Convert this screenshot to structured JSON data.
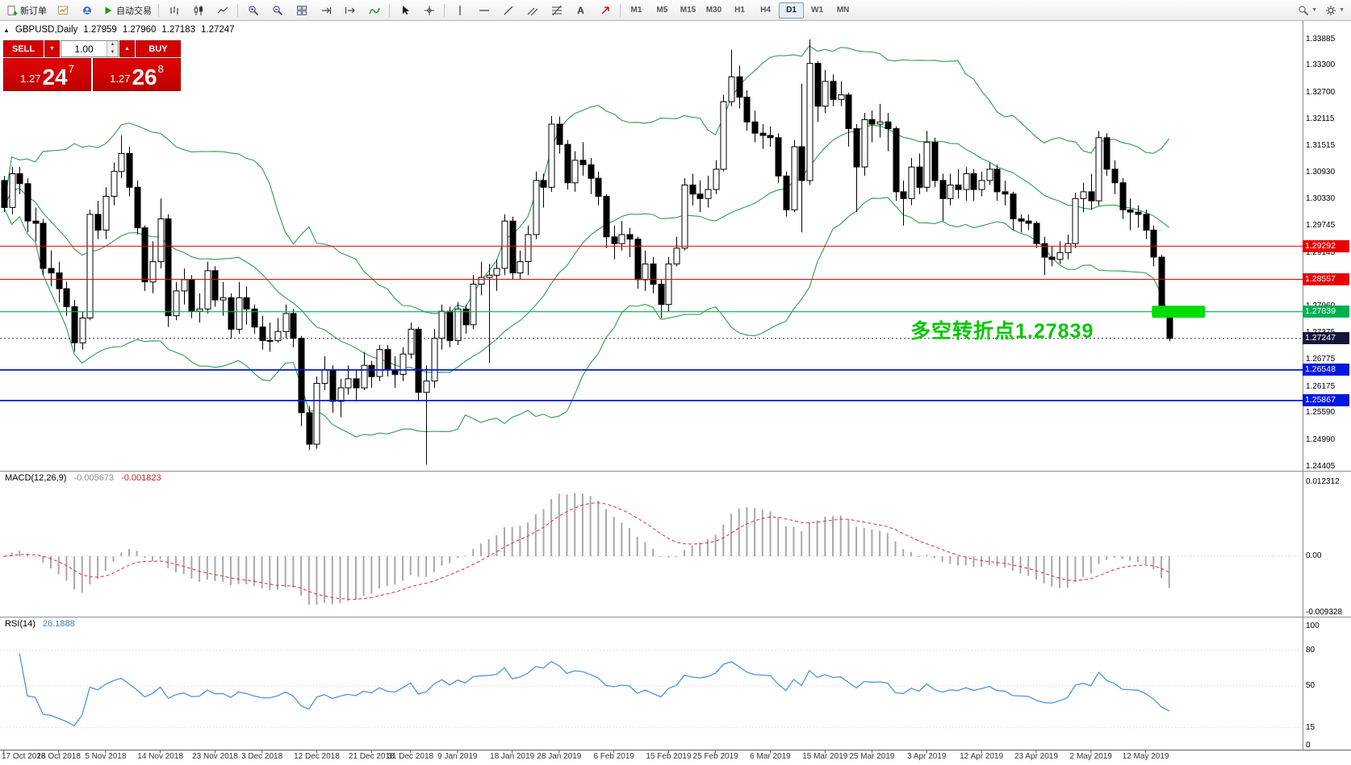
{
  "toolbar": {
    "new_order_label": "新订单",
    "auto_trading_label": "自动交易",
    "text_tool_label": "A",
    "timeframes": [
      "M1",
      "M5",
      "M15",
      "M30",
      "H1",
      "H4",
      "D1",
      "W1",
      "MN"
    ],
    "active_timeframe": "D1"
  },
  "quote_bar": {
    "symbol": "GBPUSD,Daily",
    "open": "1.27959",
    "high": "1.27960",
    "low": "1.27183",
    "close": "1.27247"
  },
  "trade_panel": {
    "sell_label": "SELL",
    "buy_label": "BUY",
    "lot_value": "1.00",
    "sell_price": {
      "prefix": "1.27",
      "big": "24",
      "sup": "7"
    },
    "buy_price": {
      "prefix": "1.27",
      "big": "26",
      "sup": "8"
    },
    "button_color": "#d40000"
  },
  "annotation": {
    "text": "多空转折点1.27839",
    "color": "#00c800"
  },
  "price_axis": {
    "ticks": [
      "1.33885",
      "1.33300",
      "1.32700",
      "1.32115",
      "1.31515",
      "1.30930",
      "1.30330",
      "1.29745",
      "1.29145",
      "1.28545",
      "1.27960",
      "1.27375",
      "1.26775",
      "1.26175",
      "1.25590",
      "1.24990",
      "1.24405"
    ]
  },
  "levels": [
    {
      "label": "1.29292",
      "price": 1.29292,
      "color": "#e80000",
      "width": 1,
      "dash": ""
    },
    {
      "label": "1.28557",
      "price": 1.28557,
      "color": "#e80000",
      "width": 1,
      "dash": ""
    },
    {
      "label": "1.27839",
      "price": 1.27839,
      "color": "#00b050",
      "width": 1.2,
      "dash": ""
    },
    {
      "label": "1.27247",
      "price": 1.27247,
      "color": "#15153a",
      "width": 0.8,
      "dash": "2,3",
      "role": "bid"
    },
    {
      "label": "1.26548",
      "price": 1.26548,
      "color": "#0018e0",
      "width": 1.8,
      "dash": ""
    },
    {
      "label": "1.25867",
      "price": 1.25867,
      "color": "#0018e0",
      "width": 1.8,
      "dash": ""
    }
  ],
  "chart_data": {
    "type": "candlestick",
    "symbol": "GBPUSD",
    "timeframe": "Daily",
    "y_range": [
      1.2431,
      1.3429
    ],
    "ohlc": [
      [
        1.3075,
        1.3085,
        1.3005,
        1.3015
      ],
      [
        1.3015,
        1.3105,
        1.3,
        1.309
      ],
      [
        1.309,
        1.3105,
        1.3045,
        1.3068
      ],
      [
        1.3068,
        1.308,
        1.296,
        1.2985
      ],
      [
        1.2985,
        1.3015,
        1.294,
        1.298
      ],
      [
        1.298,
        1.299,
        1.2865,
        1.288
      ],
      [
        1.288,
        1.292,
        1.284,
        1.287
      ],
      [
        1.287,
        1.2895,
        1.2805,
        1.2835
      ],
      [
        1.2835,
        1.285,
        1.2775,
        1.2795
      ],
      [
        1.2795,
        1.281,
        1.2695,
        1.2715
      ],
      [
        1.2715,
        1.2785,
        1.27,
        1.277
      ],
      [
        1.277,
        1.301,
        1.2765,
        1.3
      ],
      [
        1.3,
        1.303,
        1.2945,
        1.2965
      ],
      [
        1.2965,
        1.306,
        1.2945,
        1.304
      ],
      [
        1.304,
        1.3115,
        1.302,
        1.3095
      ],
      [
        1.3095,
        1.3175,
        1.308,
        1.3135
      ],
      [
        1.3135,
        1.315,
        1.304,
        1.306
      ],
      [
        1.306,
        1.3075,
        1.2955,
        1.297
      ],
      [
        1.297,
        1.2975,
        1.283,
        1.285
      ],
      [
        1.285,
        1.294,
        1.2825,
        1.2895
      ],
      [
        1.2895,
        1.3035,
        1.288,
        1.299
      ],
      [
        1.299,
        1.3,
        1.275,
        1.2775
      ],
      [
        1.2775,
        1.285,
        1.2765,
        1.283
      ],
      [
        1.283,
        1.288,
        1.28,
        1.2855
      ],
      [
        1.2855,
        1.2865,
        1.277,
        1.2785
      ],
      [
        1.2785,
        1.2825,
        1.276,
        1.279
      ],
      [
        1.279,
        1.2895,
        1.278,
        1.2875
      ],
      [
        1.2875,
        1.2885,
        1.2795,
        1.281
      ],
      [
        1.281,
        1.285,
        1.2775,
        1.2815
      ],
      [
        1.2815,
        1.2825,
        1.2725,
        1.2745
      ],
      [
        1.2745,
        1.285,
        1.2735,
        1.2815
      ],
      [
        1.2815,
        1.284,
        1.2755,
        1.279
      ],
      [
        1.279,
        1.28,
        1.2735,
        1.275
      ],
      [
        1.275,
        1.2775,
        1.27,
        1.272
      ],
      [
        1.272,
        1.276,
        1.2695,
        1.272
      ],
      [
        1.272,
        1.277,
        1.2715,
        1.274
      ],
      [
        1.274,
        1.28,
        1.2725,
        1.278
      ],
      [
        1.278,
        1.279,
        1.2705,
        1.2725
      ],
      [
        1.2725,
        1.273,
        1.253,
        1.256
      ],
      [
        1.256,
        1.2575,
        1.2477,
        1.249
      ],
      [
        1.249,
        1.264,
        1.248,
        1.2625
      ],
      [
        1.2625,
        1.2685,
        1.261,
        1.2655
      ],
      [
        1.2655,
        1.2665,
        1.256,
        1.2585
      ],
      [
        1.2585,
        1.2635,
        1.255,
        1.2615
      ],
      [
        1.2615,
        1.2665,
        1.26,
        1.2635
      ],
      [
        1.2635,
        1.2655,
        1.2585,
        1.2615
      ],
      [
        1.2615,
        1.2695,
        1.261,
        1.2665
      ],
      [
        1.2665,
        1.2675,
        1.2615,
        1.264
      ],
      [
        1.264,
        1.271,
        1.263,
        1.27
      ],
      [
        1.27,
        1.271,
        1.264,
        1.2655
      ],
      [
        1.2655,
        1.2685,
        1.2615,
        1.2645
      ],
      [
        1.2645,
        1.2705,
        1.263,
        1.269
      ],
      [
        1.269,
        1.276,
        1.268,
        1.2745
      ],
      [
        1.2745,
        1.275,
        1.2585,
        1.2605
      ],
      [
        1.2605,
        1.2665,
        1.2445,
        1.263
      ],
      [
        1.263,
        1.2745,
        1.2615,
        1.2725
      ],
      [
        1.2725,
        1.28,
        1.27,
        1.2785
      ],
      [
        1.2785,
        1.2795,
        1.2705,
        1.272
      ],
      [
        1.272,
        1.2805,
        1.271,
        1.279
      ],
      [
        1.279,
        1.28,
        1.2735,
        1.2755
      ],
      [
        1.2755,
        1.2865,
        1.2745,
        1.2845
      ],
      [
        1.2845,
        1.2895,
        1.282,
        1.286
      ],
      [
        1.286,
        1.289,
        1.267,
        1.2865
      ],
      [
        1.2865,
        1.29,
        1.283,
        1.288
      ],
      [
        1.288,
        1.3,
        1.2865,
        1.2985
      ],
      [
        1.2985,
        1.2995,
        1.2855,
        1.287
      ],
      [
        1.287,
        1.292,
        1.2855,
        1.2895
      ],
      [
        1.2895,
        1.2975,
        1.2865,
        1.2955
      ],
      [
        1.2955,
        1.3095,
        1.2945,
        1.3075
      ],
      [
        1.3075,
        1.309,
        1.3015,
        1.306
      ],
      [
        1.306,
        1.3218,
        1.305,
        1.32
      ],
      [
        1.32,
        1.3217,
        1.3135,
        1.3155
      ],
      [
        1.3155,
        1.3165,
        1.3055,
        1.307
      ],
      [
        1.307,
        1.314,
        1.305,
        1.312
      ],
      [
        1.312,
        1.316,
        1.3085,
        1.311
      ],
      [
        1.311,
        1.3125,
        1.3045,
        1.308
      ],
      [
        1.308,
        1.3095,
        1.302,
        1.304
      ],
      [
        1.304,
        1.3045,
        1.2925,
        1.295
      ],
      [
        1.295,
        1.2975,
        1.29,
        1.2935
      ],
      [
        1.2935,
        1.2985,
        1.292,
        1.2955
      ],
      [
        1.2955,
        1.297,
        1.2905,
        1.2945
      ],
      [
        1.2945,
        1.295,
        1.2835,
        1.2855
      ],
      [
        1.2855,
        1.292,
        1.283,
        1.289
      ],
      [
        1.289,
        1.2905,
        1.2825,
        1.2845
      ],
      [
        1.2845,
        1.2855,
        1.277,
        1.28
      ],
      [
        1.28,
        1.2905,
        1.2785,
        1.289
      ],
      [
        1.289,
        1.295,
        1.2885,
        1.2925
      ],
      [
        1.2925,
        1.308,
        1.292,
        1.3065
      ],
      [
        1.3065,
        1.309,
        1.302,
        1.3045
      ],
      [
        1.3045,
        1.3075,
        1.3005,
        1.3035
      ],
      [
        1.3035,
        1.3085,
        1.3015,
        1.3055
      ],
      [
        1.3055,
        1.312,
        1.3045,
        1.31
      ],
      [
        1.31,
        1.3265,
        1.3095,
        1.325
      ],
      [
        1.325,
        1.3365,
        1.324,
        1.3305
      ],
      [
        1.3305,
        1.333,
        1.3235,
        1.326
      ],
      [
        1.326,
        1.3275,
        1.3185,
        1.3205
      ],
      [
        1.3205,
        1.323,
        1.316,
        1.318
      ],
      [
        1.318,
        1.32,
        1.3145,
        1.3175
      ],
      [
        1.3175,
        1.3195,
        1.315,
        1.317
      ],
      [
        1.317,
        1.318,
        1.307,
        1.3085
      ],
      [
        1.3085,
        1.3095,
        1.2995,
        1.301
      ],
      [
        1.301,
        1.3165,
        1.3005,
        1.315
      ],
      [
        1.315,
        1.329,
        1.296,
        1.3075
      ],
      [
        1.3075,
        1.3388,
        1.3065,
        1.3335
      ],
      [
        1.3335,
        1.334,
        1.3205,
        1.324
      ],
      [
        1.324,
        1.332,
        1.3225,
        1.3295
      ],
      [
        1.3295,
        1.331,
        1.324,
        1.3255
      ],
      [
        1.3255,
        1.3295,
        1.324,
        1.3265
      ],
      [
        1.3265,
        1.327,
        1.315,
        1.319
      ],
      [
        1.319,
        1.32,
        1.3005,
        1.3105
      ],
      [
        1.3105,
        1.3225,
        1.3085,
        1.321
      ],
      [
        1.321,
        1.323,
        1.316,
        1.32
      ],
      [
        1.32,
        1.3245,
        1.317,
        1.3205
      ],
      [
        1.3205,
        1.3225,
        1.314,
        1.319
      ],
      [
        1.319,
        1.3195,
        1.303,
        1.305
      ],
      [
        1.305,
        1.3075,
        1.2975,
        1.3035
      ],
      [
        1.3035,
        1.3125,
        1.302,
        1.3105
      ],
      [
        1.3105,
        1.3135,
        1.3045,
        1.306
      ],
      [
        1.306,
        1.3185,
        1.305,
        1.316
      ],
      [
        1.316,
        1.317,
        1.306,
        1.3075
      ],
      [
        1.3075,
        1.309,
        1.2985,
        1.3035
      ],
      [
        1.3035,
        1.309,
        1.302,
        1.3065
      ],
      [
        1.3065,
        1.31,
        1.3035,
        1.3055
      ],
      [
        1.3055,
        1.3105,
        1.303,
        1.309
      ],
      [
        1.309,
        1.31,
        1.303,
        1.3055
      ],
      [
        1.3055,
        1.3095,
        1.304,
        1.3075
      ],
      [
        1.3075,
        1.3115,
        1.3065,
        1.31
      ],
      [
        1.31,
        1.311,
        1.303,
        1.305
      ],
      [
        1.305,
        1.3075,
        1.302,
        1.3045
      ],
      [
        1.3045,
        1.305,
        1.2965,
        1.299
      ],
      [
        1.299,
        1.3,
        1.296,
        1.2985
      ],
      [
        1.2985,
        1.3,
        1.2965,
        1.298
      ],
      [
        1.298,
        1.2985,
        1.2925,
        1.2935
      ],
      [
        1.2935,
        1.295,
        1.2865,
        1.2905
      ],
      [
        1.2905,
        1.293,
        1.2885,
        1.29
      ],
      [
        1.29,
        1.294,
        1.289,
        1.2915
      ],
      [
        1.2915,
        1.2955,
        1.29,
        1.2935
      ],
      [
        1.2935,
        1.3048,
        1.2925,
        1.3035
      ],
      [
        1.3035,
        1.307,
        1.3005,
        1.305
      ],
      [
        1.305,
        1.309,
        1.301,
        1.303
      ],
      [
        1.303,
        1.3185,
        1.302,
        1.317
      ],
      [
        1.317,
        1.318,
        1.3085,
        1.31
      ],
      [
        1.31,
        1.312,
        1.3045,
        1.307
      ],
      [
        1.307,
        1.308,
        1.299,
        1.301
      ],
      [
        1.301,
        1.3035,
        1.2965,
        1.3005
      ],
      [
        1.3005,
        1.302,
        1.297,
        1.3
      ],
      [
        1.3,
        1.301,
        1.2945,
        1.2965
      ],
      [
        1.2965,
        1.2975,
        1.2885,
        1.2905
      ],
      [
        1.2905,
        1.291,
        1.278,
        1.2795
      ],
      [
        1.27959,
        1.2796,
        1.27183,
        1.27247
      ]
    ],
    "x_labels": [
      [
        "17 Oct 2018",
        0
      ],
      [
        "26 Oct 2018",
        7
      ],
      [
        "5 Nov 2018",
        13
      ],
      [
        "14 Nov 2018",
        20
      ],
      [
        "23 Nov 2018",
        27
      ],
      [
        "3 Dec 2018",
        33
      ],
      [
        "12 Dec 2018",
        40
      ],
      [
        "21 Dec 2018",
        47
      ],
      [
        "31 Dec 2018",
        52
      ],
      [
        "9 Jan 2019",
        58
      ],
      [
        "18 Jan 2019",
        65
      ],
      [
        "28 Jan 2019",
        71
      ],
      [
        "6 Feb 2019",
        78
      ],
      [
        "15 Feb 2019",
        85
      ],
      [
        "25 Feb 2019",
        91
      ],
      [
        "6 Mar 2019",
        98
      ],
      [
        "15 Mar 2019",
        105
      ],
      [
        "25 Mar 2019",
        111
      ],
      [
        "3 Apr 2019",
        118
      ],
      [
        "12 Apr 2019",
        125
      ],
      [
        "23 Apr 2019",
        132
      ],
      [
        "2 May 2019",
        139
      ],
      [
        "12 May 2019",
        146
      ]
    ],
    "objects": {
      "highlight_marker": {
        "price": 1.27839,
        "start_index": 146.8,
        "end_index": 153.6,
        "thickness": 15,
        "color": "#00dd00"
      }
    },
    "indicators": {
      "bollinger": {
        "period": 20,
        "deviation": 2,
        "color": "#2e9e4e"
      },
      "macd": {
        "label": "MACD(12,26,9)",
        "fast": 12,
        "slow": 26,
        "signal": 9,
        "main_value": "-0.005673",
        "signal_value": "-0.001823",
        "histogram_color": "#a8a8a8",
        "signal_color": "#e03030",
        "scale_labels": [
          [
            "0.012312",
            0.012312
          ],
          [
            "0.00",
            0
          ],
          [
            "-0.009328",
            -0.009328
          ]
        ],
        "range": [
          -0.01002,
          0.01403
        ]
      },
      "rsi": {
        "label": "RSI(14)",
        "period": 14,
        "value": "26.1888",
        "color": "#4f94dd",
        "levels": [
          80,
          50,
          15
        ],
        "scale_labels": [
          [
            "100",
            100
          ],
          [
            "80",
            80
          ],
          [
            "50",
            50
          ],
          [
            "15",
            15
          ],
          [
            "0",
            0
          ]
        ],
        "range": [
          0,
          100
        ]
      }
    }
  }
}
